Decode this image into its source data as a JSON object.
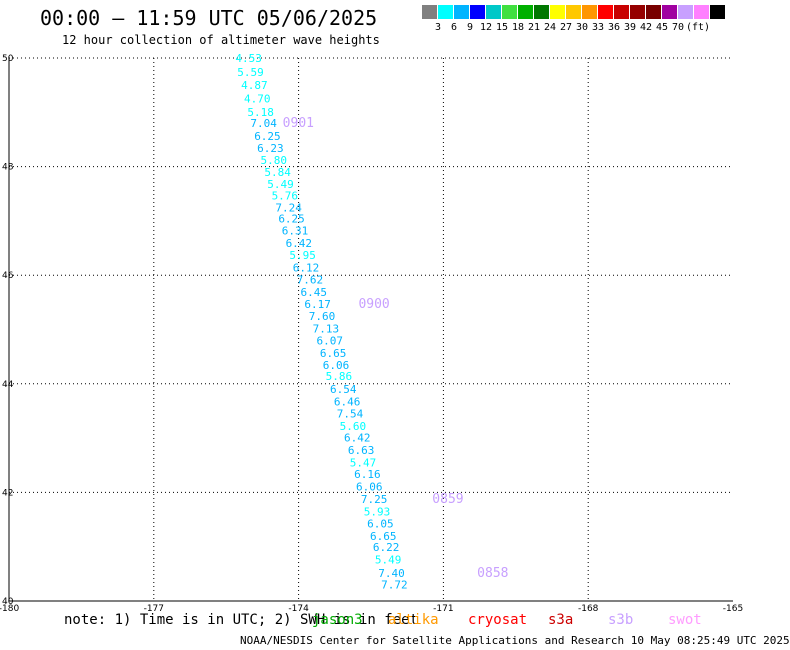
{
  "header": {
    "title": "00:00 – 11:59 UTC 05/06/2025",
    "subtitle": "12 hour collection of altimeter wave heights"
  },
  "colorbar": {
    "colors": [
      "#808080",
      "#00ffff",
      "#00b4ff",
      "#0000ff",
      "#00c8c8",
      "#40e040",
      "#00b000",
      "#007800",
      "#ffff00",
      "#ffc800",
      "#ff9600",
      "#ff0000",
      "#c80000",
      "#960000",
      "#780000",
      "#a000a0",
      "#c8a0ff",
      "#ff80ff",
      "#000000"
    ],
    "labels": [
      "3",
      "6",
      "9",
      "12",
      "15",
      "18",
      "21",
      "24",
      "27",
      "30",
      "33",
      "36",
      "39",
      "42",
      "45",
      "70"
    ],
    "unit": "(ft)"
  },
  "footer": {
    "note": "note: 1) Time is in UTC; 2) SWH is in feet",
    "legend": [
      {
        "name": "jason3",
        "color": "#00aa00"
      },
      {
        "name": "altika",
        "color": "#ff9900"
      },
      {
        "name": "cryosat",
        "color": "#ff0000"
      },
      {
        "name": "s3a",
        "color": "#cc0000"
      },
      {
        "name": "s3b",
        "color": "#c8a0ff"
      },
      {
        "name": "swot",
        "color": "#ff9cff"
      }
    ],
    "credit": "NOAA/NESDIS Center for Satellite Applications and Research    10 May 08:25:49 UTC 2025"
  },
  "chart_data": {
    "type": "scatter",
    "xlim": [
      -180,
      -165
    ],
    "ylim": [
      40,
      50
    ],
    "x_ticks": [
      "-180",
      "-177",
      "-174",
      "-171",
      "-168",
      "-165"
    ],
    "x_tick_values": [
      -180,
      -177,
      -174,
      -171,
      -168,
      -165
    ],
    "y_ticks": [
      "40",
      "42",
      "44",
      "46",
      "48",
      "50"
    ],
    "y_tick_values": [
      40,
      42,
      44,
      46,
      48,
      50
    ],
    "grid": true,
    "series": [
      {
        "color": "#c8a0ff",
        "points": [
          {
            "lon": -175.31,
            "lat": 50.0,
            "swh": "4.53",
            "color": "#00ffff"
          },
          {
            "lon": -175.27,
            "lat": 49.74,
            "swh": "5.59",
            "color": "#00ffff"
          },
          {
            "lon": -175.19,
            "lat": 49.5,
            "swh": "4.87",
            "color": "#00ffff"
          },
          {
            "lon": -175.13,
            "lat": 49.25,
            "swh": "4.70",
            "color": "#00ffff"
          },
          {
            "lon": -175.06,
            "lat": 49.01,
            "swh": "5.18",
            "color": "#00ffff"
          },
          {
            "lon": -175.0,
            "lat": 48.8,
            "swh": "7.04",
            "color": "#00b4ff"
          },
          {
            "lon": -174.92,
            "lat": 48.56,
            "swh": "6.25",
            "color": "#00b4ff"
          },
          {
            "lon": -174.86,
            "lat": 48.34,
            "swh": "6.23",
            "color": "#00b4ff"
          },
          {
            "lon": -174.79,
            "lat": 48.12,
            "swh": "5.80",
            "color": "#00ffff"
          },
          {
            "lon": -174.71,
            "lat": 47.9,
            "swh": "5.84",
            "color": "#00ffff"
          },
          {
            "lon": -174.65,
            "lat": 47.68,
            "swh": "5.49",
            "color": "#00ffff"
          },
          {
            "lon": -174.56,
            "lat": 47.47,
            "swh": "5.76",
            "color": "#00ffff"
          },
          {
            "lon": -174.48,
            "lat": 47.25,
            "swh": "7.24",
            "color": "#00b4ff"
          },
          {
            "lon": -174.42,
            "lat": 47.04,
            "swh": "6.25",
            "color": "#00b4ff"
          },
          {
            "lon": -174.35,
            "lat": 46.82,
            "swh": "6.31",
            "color": "#00b4ff"
          },
          {
            "lon": -174.27,
            "lat": 46.59,
            "swh": "6.42",
            "color": "#00b4ff"
          },
          {
            "lon": -174.19,
            "lat": 46.37,
            "swh": "5.95",
            "color": "#00ffff"
          },
          {
            "lon": -174.12,
            "lat": 46.14,
            "swh": "6.12",
            "color": "#00b4ff"
          },
          {
            "lon": -174.04,
            "lat": 45.92,
            "swh": "7.62",
            "color": "#00b4ff"
          },
          {
            "lon": -173.96,
            "lat": 45.69,
            "swh": "6.45",
            "color": "#00b4ff"
          },
          {
            "lon": -173.88,
            "lat": 45.47,
            "swh": "6.17",
            "color": "#00b4ff"
          },
          {
            "lon": -173.79,
            "lat": 45.25,
            "swh": "7.60",
            "color": "#00b4ff"
          },
          {
            "lon": -173.71,
            "lat": 45.02,
            "swh": "7.13",
            "color": "#00b4ff"
          },
          {
            "lon": -173.63,
            "lat": 44.8,
            "swh": "6.07",
            "color": "#00b4ff"
          },
          {
            "lon": -173.56,
            "lat": 44.57,
            "swh": "6.65",
            "color": "#00b4ff"
          },
          {
            "lon": -173.5,
            "lat": 44.35,
            "swh": "6.06",
            "color": "#00b4ff"
          },
          {
            "lon": -173.44,
            "lat": 44.14,
            "swh": "5.86",
            "color": "#00ffff"
          },
          {
            "lon": -173.35,
            "lat": 43.9,
            "swh": "6.54",
            "color": "#00b4ff"
          },
          {
            "lon": -173.27,
            "lat": 43.67,
            "swh": "6.46",
            "color": "#00b4ff"
          },
          {
            "lon": -173.21,
            "lat": 43.45,
            "swh": "7.54",
            "color": "#00b4ff"
          },
          {
            "lon": -173.15,
            "lat": 43.22,
            "swh": "5.60",
            "color": "#00ffff"
          },
          {
            "lon": -173.06,
            "lat": 43.01,
            "swh": "6.42",
            "color": "#00b4ff"
          },
          {
            "lon": -172.98,
            "lat": 42.78,
            "swh": "6.63",
            "color": "#00b4ff"
          },
          {
            "lon": -172.94,
            "lat": 42.55,
            "swh": "5.47",
            "color": "#00ffff"
          },
          {
            "lon": -172.85,
            "lat": 42.34,
            "swh": "6.16",
            "color": "#00b4ff"
          },
          {
            "lon": -172.81,
            "lat": 42.11,
            "swh": "6.06",
            "color": "#00b4ff"
          },
          {
            "lon": -172.71,
            "lat": 41.88,
            "swh": "7.25",
            "color": "#00b4ff"
          },
          {
            "lon": -172.65,
            "lat": 41.65,
            "swh": "5.93",
            "color": "#00ffff"
          },
          {
            "lon": -172.58,
            "lat": 41.43,
            "swh": "6.05",
            "color": "#00b4ff"
          },
          {
            "lon": -172.52,
            "lat": 41.2,
            "swh": "6.65",
            "color": "#00b4ff"
          },
          {
            "lon": -172.46,
            "lat": 40.99,
            "swh": "6.22",
            "color": "#00b4ff"
          },
          {
            "lon": -172.42,
            "lat": 40.76,
            "swh": "5.49",
            "color": "#00ffff"
          },
          {
            "lon": -172.35,
            "lat": 40.52,
            "swh": "7.40",
            "color": "#00b4ff"
          },
          {
            "lon": -172.29,
            "lat": 40.3,
            "swh": "7.72",
            "color": "#00b4ff"
          }
        ],
        "time_labels": [
          {
            "label": "0901",
            "lon": -174.33,
            "lat": 48.8
          },
          {
            "label": "0900",
            "lon": -172.76,
            "lat": 45.47
          },
          {
            "label": "0859",
            "lon": -171.23,
            "lat": 41.88
          },
          {
            "label": "0858",
            "lon": -170.3,
            "lat": 40.52
          }
        ]
      }
    ]
  }
}
